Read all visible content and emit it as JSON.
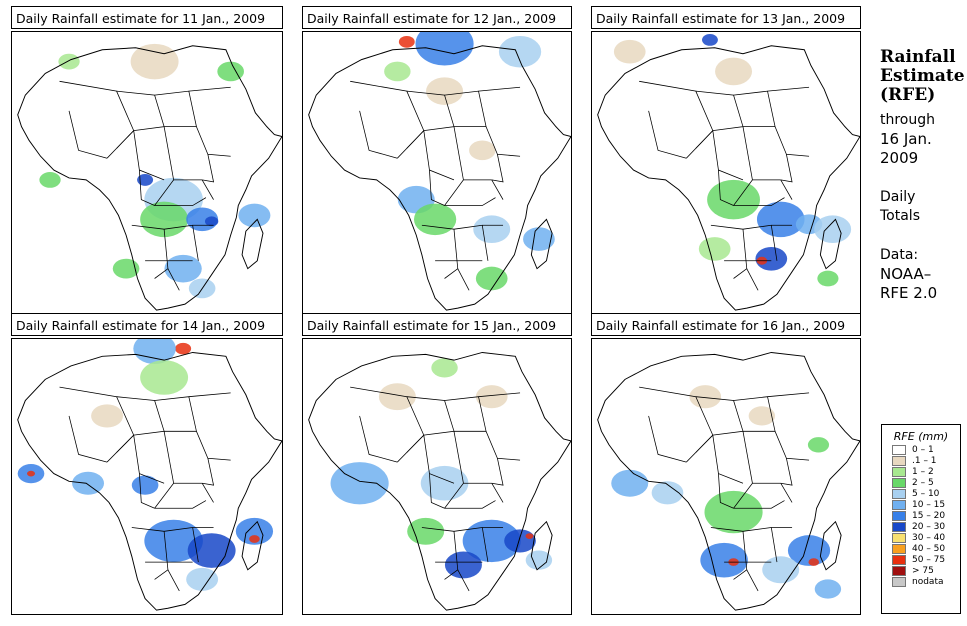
{
  "panels": [
    {
      "title": "Daily Rainfall estimate for  11 Jan., 2009",
      "date": "11 Jan., 2009"
    },
    {
      "title": "Daily Rainfall estimate for  12 Jan., 2009",
      "date": "12 Jan., 2009"
    },
    {
      "title": "Daily Rainfall estimate for  13 Jan., 2009",
      "date": "13 Jan., 2009"
    },
    {
      "title": "Daily Rainfall estimate for  14 Jan., 2009",
      "date": "14 Jan., 2009"
    },
    {
      "title": "Daily Rainfall estimate for  15 Jan., 2009",
      "date": "15 Jan., 2009"
    },
    {
      "title": "Daily Rainfall estimate for  16 Jan., 2009",
      "date": "16 Jan., 2009"
    }
  ],
  "side": {
    "title_line1": "Rainfall",
    "title_line2": "Estimate",
    "title_line3": "(RFE)",
    "through_label": "through",
    "through_date_line1": "16 Jan.",
    "through_date_line2": "2009",
    "totals_line1": "Daily",
    "totals_line2": "Totals",
    "data_line1": "Data:",
    "data_line2": "NOAA–",
    "data_line3": "RFE 2.0"
  },
  "legend": {
    "title": "RFE (mm)",
    "items": [
      {
        "label": "0 – 1",
        "color": "#ffffff"
      },
      {
        "label": ".1 – 1",
        "color": "#e8d8c0"
      },
      {
        "label": "1 – 2",
        "color": "#a8e890"
      },
      {
        "label": "2 – 5",
        "color": "#68d868"
      },
      {
        "label": "5 – 10",
        "color": "#a8d0f0"
      },
      {
        "label": "10 – 15",
        "color": "#70b0f0"
      },
      {
        "label": "15 – 20",
        "color": "#3880e8"
      },
      {
        "label": "20 – 30",
        "color": "#1848c8"
      },
      {
        "label": "30 – 40",
        "color": "#f8e070"
      },
      {
        "label": "40 – 50",
        "color": "#f8a020"
      },
      {
        "label": "50 – 75",
        "color": "#e83010"
      },
      {
        "label": "> 75",
        "color": "#a01010"
      },
      {
        "label": "nodata",
        "color": "#c8c8c8"
      }
    ]
  }
}
